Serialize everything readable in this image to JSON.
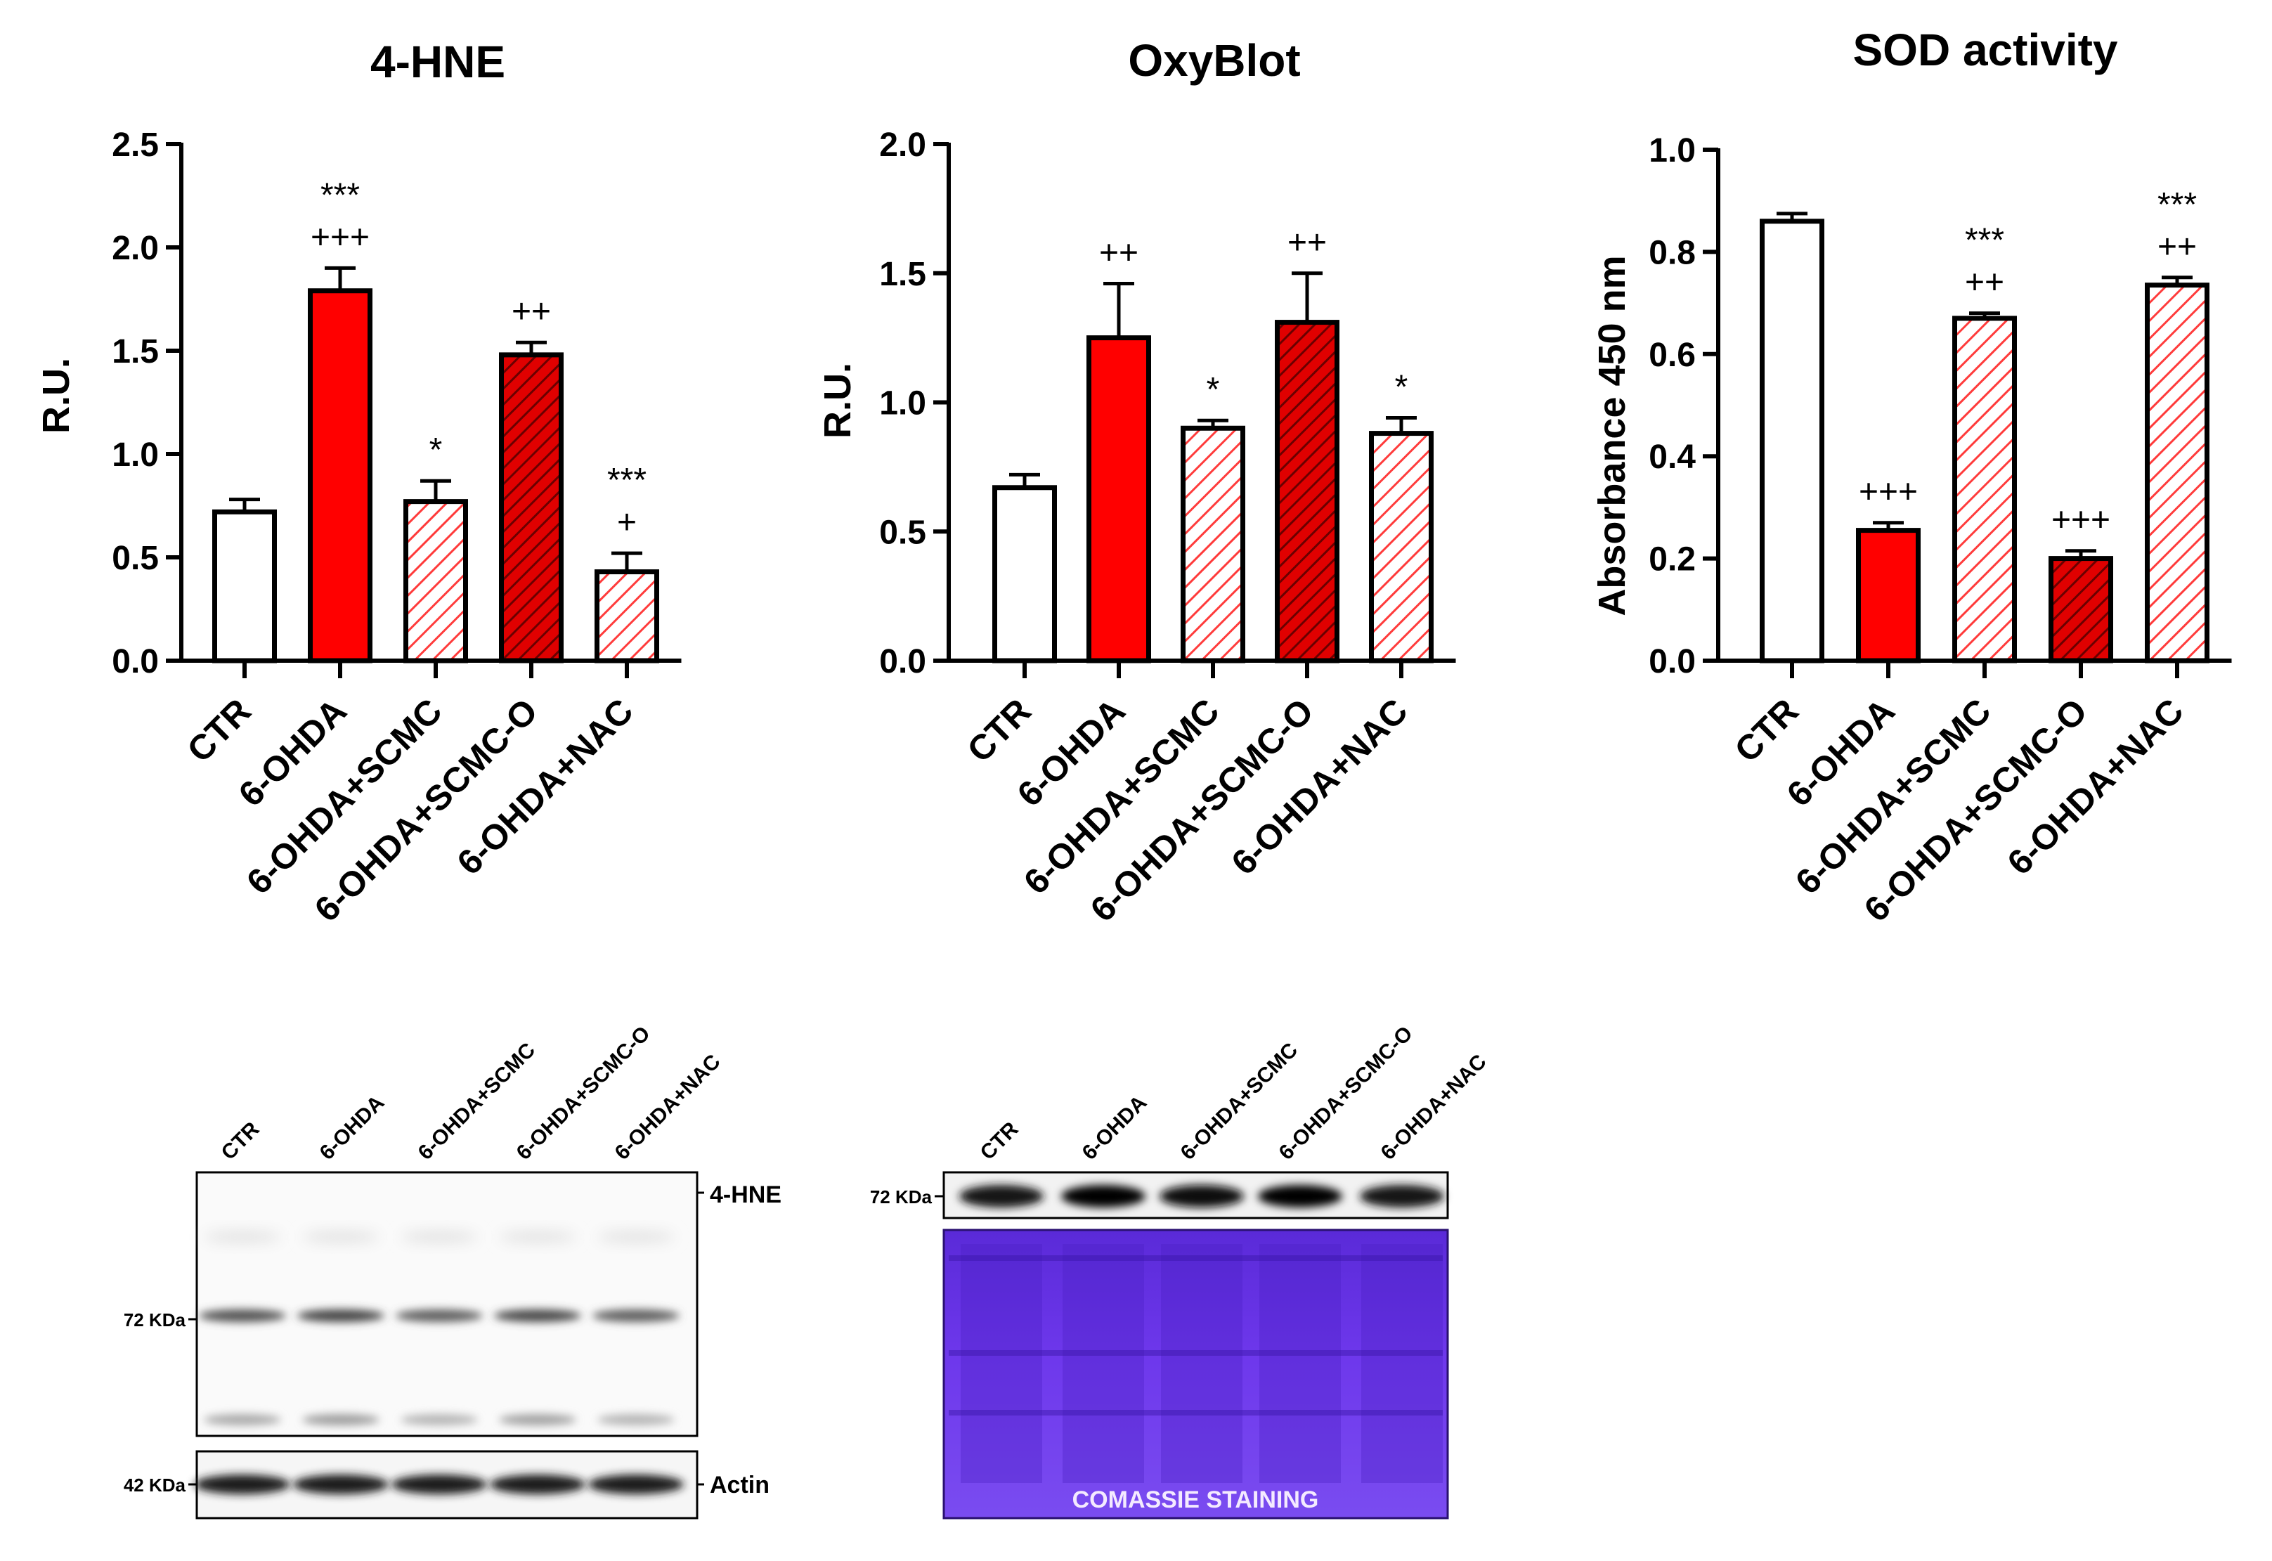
{
  "colors": {
    "red": "#ff0000",
    "dark_red": "#c00000",
    "hatch_red": "#ff3b3b",
    "black": "#000000",
    "white": "#ffffff",
    "blot_blue": "#6a2fe0"
  },
  "chart_data": [
    {
      "type": "bar",
      "title": "4-HNE",
      "ylabel": "R.U.",
      "ylim": [
        0,
        2.5
      ],
      "yticks": [
        "0.0",
        "0.5",
        "1.0",
        "1.5",
        "2.0",
        "2.5"
      ],
      "categories": [
        "CTR",
        "6-OHDA",
        "6-OHDA+SCMC",
        "6-OHDA+SCMC-O",
        "6-OHDA+NAC"
      ],
      "fills": [
        "white",
        "red",
        "hatch-light",
        "hatch-dark",
        "hatch-light"
      ],
      "values": [
        0.72,
        1.79,
        0.77,
        1.48,
        0.43
      ],
      "errors": [
        0.06,
        0.11,
        0.1,
        0.06,
        0.09
      ],
      "annotations": [
        [],
        [
          "***",
          "+++"
        ],
        [
          "*"
        ],
        [
          "++"
        ],
        [
          "***",
          "+"
        ]
      ]
    },
    {
      "type": "bar",
      "title": "OxyBlot",
      "ylabel": "R.U.",
      "ylim": [
        0,
        2.0
      ],
      "yticks": [
        "0.0",
        "0.5",
        "1.0",
        "1.5",
        "2.0"
      ],
      "categories": [
        "CTR",
        "6-OHDA",
        "6-OHDA+SCMC",
        "6-OHDA+SCMC-O",
        "6-OHDA+NAC"
      ],
      "fills": [
        "white",
        "red",
        "hatch-light",
        "hatch-dark",
        "hatch-light"
      ],
      "values": [
        0.67,
        1.25,
        0.9,
        1.31,
        0.88
      ],
      "errors": [
        0.05,
        0.21,
        0.03,
        0.19,
        0.06
      ],
      "annotations": [
        [],
        [
          "++"
        ],
        [
          "*"
        ],
        [
          "++"
        ],
        [
          "*"
        ]
      ]
    },
    {
      "type": "bar",
      "title": "SOD activity",
      "ylabel": "Absorbance 450 nm",
      "ylim": [
        0,
        1.0
      ],
      "yticks": [
        "0.0",
        "0.2",
        "0.4",
        "0.6",
        "0.8",
        "1.0"
      ],
      "categories": [
        "CTR",
        "6-OHDA",
        "6-OHDA+SCMC",
        "6-OHDA+SCMC-O",
        "6-OHDA+NAC"
      ],
      "fills": [
        "white",
        "red",
        "hatch-light",
        "hatch-dark",
        "hatch-light"
      ],
      "values": [
        0.86,
        0.255,
        0.67,
        0.2,
        0.735
      ],
      "errors": [
        0.015,
        0.015,
        0.01,
        0.015,
        0.015
      ],
      "annotations": [
        [],
        [
          "+++"
        ],
        [
          "***",
          "++"
        ],
        [
          "+++"
        ],
        [
          "***",
          "++"
        ]
      ]
    }
  ],
  "blots": {
    "hne": {
      "lanes": [
        "CTR",
        "6-OHDA",
        "6-OHDA+SCMC",
        "6-OHDA+SCMC-O",
        "6-OHDA+NAC"
      ],
      "label": "4-HNE",
      "marker": "72 KDa",
      "actin_label": "Actin",
      "actin_marker": "42 KDa",
      "band_intensity": [
        0.75,
        0.9,
        0.6,
        0.85,
        0.6
      ]
    },
    "oxy": {
      "lanes": [
        "CTR",
        "6-OHDA",
        "6-OHDA+SCMC",
        "6-OHDA+SCMC-O",
        "6-OHDA+NAC"
      ],
      "marker": "72 KDa",
      "stain_label": "COMASSIE STAINING",
      "band_intensity": [
        0.8,
        0.95,
        0.85,
        1.0,
        0.8
      ]
    }
  }
}
